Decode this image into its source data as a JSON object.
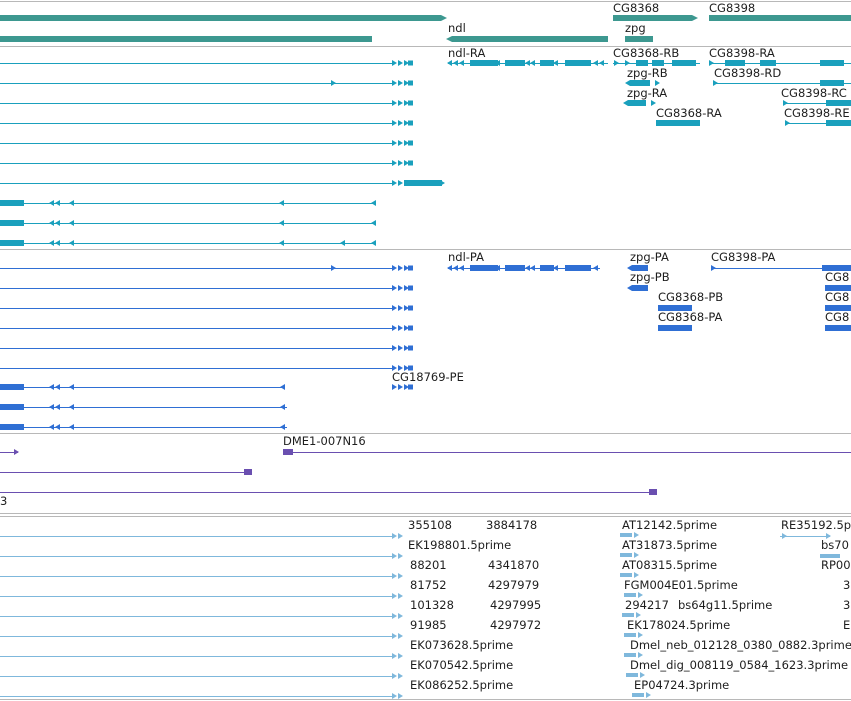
{
  "tracks": {
    "gene_span": {
      "color": "#3d9890",
      "labels": [
        "CG8368",
        "CG8398",
        "ndl",
        "zpg"
      ]
    },
    "transcripts_1": {
      "color": "#1aa0bd",
      "labels": [
        "ndl-RA",
        "CG8368-RB",
        "CG8398-RA",
        "zpg-RB",
        "CG8398-RD",
        "zpg-RA",
        "CG8398-RC",
        "CG8368-RA",
        "CG8398-RE"
      ]
    },
    "transcripts_2": {
      "color": "#2f6fd4",
      "labels": [
        "ndl-PA",
        "zpg-PA",
        "CG8398-PA",
        "zpg-PB",
        "CG8368-PB",
        "CG8368-PA",
        "CG18769-PE",
        "CG8",
        "CG8",
        "CG8"
      ]
    },
    "clones": {
      "color": "#6a4fb0",
      "labels": [
        "DME1-007N16",
        "3"
      ]
    },
    "ests": {
      "color": "#7fb8dc",
      "labels": [
        "355108",
        "3884178",
        "AT12142.5prime",
        "RE35192.5p",
        "EK198801.5prime",
        "AT31873.5prime",
        "bs70",
        "88201",
        "4341870",
        "AT08315.5prime",
        "RP00",
        "81752",
        "4297979",
        "FGM004E01.5prime",
        "3",
        "101328",
        "4297995",
        "294217",
        "bs64g11.5prime",
        "3",
        "91985",
        "4297972",
        "EK178024.5prime",
        "E",
        "EK073628.5prime",
        "Dmel_neb_012128_0380_0882.3prime",
        "EK070542.5prime",
        "Dmel_dig_008119_0584_1623.3prime",
        "EK086252.5prime",
        "EP04724.3prime"
      ]
    }
  }
}
